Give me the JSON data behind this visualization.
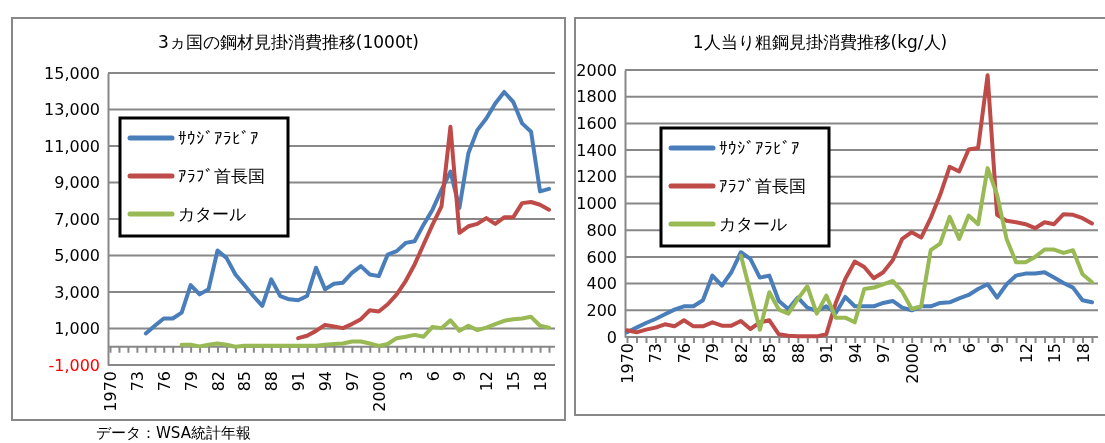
{
  "chart_data": [
    {
      "type": "line",
      "title": "3ヵ国の鋼材見掛消費推移(1000t)",
      "categories": [
        "1970",
        null,
        null,
        "73",
        null,
        null,
        "76",
        null,
        null,
        "79",
        null,
        null,
        "82",
        null,
        null,
        "85",
        null,
        null,
        "88",
        null,
        null,
        "91",
        null,
        null,
        "94",
        null,
        null,
        "97",
        null,
        null,
        "2000",
        null,
        null,
        "3",
        null,
        null,
        "6",
        null,
        null,
        "9",
        null,
        null,
        "12",
        null,
        null,
        "15",
        null,
        null,
        "18",
        null
      ],
      "series": [
        {
          "name": "ｻｳｼﾞｱﾗﾋﾞｱ",
          "color": "#4a7ebb",
          "values": [
            null,
            null,
            null,
            null,
            730,
            1150,
            1550,
            1550,
            1870,
            3380,
            2870,
            3150,
            5270,
            4870,
            3960,
            3380,
            2780,
            2240,
            3690,
            2780,
            2600,
            2550,
            2780,
            4330,
            3150,
            3450,
            3510,
            4050,
            4420,
            3960,
            3870,
            5050,
            5240,
            5690,
            5780,
            6690,
            7510,
            8600,
            9600,
            7600,
            10600,
            11870,
            12510,
            13330,
            13960,
            13420,
            12240,
            11780,
            8510,
            8650
          ]
        },
        {
          "name": "ｱﾗﾌﾞ首長国",
          "color": "#be4b48",
          "values": [
            null,
            null,
            null,
            null,
            null,
            null,
            null,
            null,
            null,
            null,
            null,
            null,
            null,
            null,
            null,
            null,
            null,
            null,
            null,
            null,
            null,
            470,
            600,
            870,
            1200,
            1110,
            1020,
            1240,
            1510,
            2000,
            1930,
            2330,
            2870,
            3600,
            4510,
            5600,
            6690,
            7690,
            12050,
            6240,
            6600,
            6730,
            7050,
            6730,
            7090,
            7090,
            7870,
            7930,
            7780,
            7510
          ]
        },
        {
          "name": "カタール",
          "color": "#98b954",
          "values": [
            null,
            null,
            null,
            null,
            null,
            null,
            null,
            null,
            110,
            110,
            20,
            110,
            180,
            110,
            0,
            50,
            50,
            50,
            50,
            50,
            50,
            50,
            50,
            50,
            110,
            150,
            180,
            290,
            290,
            180,
            50,
            150,
            470,
            550,
            650,
            550,
            1090,
            1020,
            1450,
            870,
            1150,
            910,
            1050,
            1240,
            1420,
            1510,
            1550,
            1640,
            1150,
            1050
          ]
        }
      ],
      "ylim": [
        -1000,
        15000
      ],
      "yticks": [
        {
          "value": -1000,
          "label": "-1,000"
        },
        {
          "value": 1000,
          "label": "1,000"
        },
        {
          "value": 3000,
          "label": "3,000"
        },
        {
          "value": 5000,
          "label": "5,000"
        },
        {
          "value": 7000,
          "label": "7,000"
        },
        {
          "value": 9000,
          "label": "9,000"
        },
        {
          "value": 11000,
          "label": "11,000"
        },
        {
          "value": 13000,
          "label": "13,000"
        },
        {
          "value": 15000,
          "label": "15,000"
        }
      ],
      "grid": "y",
      "legend": "top left",
      "ref_lines": [
        {
          "axis": "y",
          "value": 0,
          "color": "#888888"
        }
      ],
      "annotations": [
        "データ：WSA統計年報"
      ]
    },
    {
      "type": "line",
      "title": "1人当り粗鋼見掛消費推移(kg/人)",
      "categories": [
        "1970",
        null,
        null,
        "73",
        null,
        null,
        "76",
        null,
        null,
        "79",
        null,
        null,
        "82",
        null,
        null,
        "85",
        null,
        null,
        "88",
        null,
        null,
        "91",
        null,
        null,
        "94",
        null,
        null,
        "97",
        null,
        null,
        "2000",
        null,
        null,
        "3",
        null,
        null,
        "6",
        null,
        null,
        "9",
        null,
        null,
        "12",
        null,
        null,
        "15",
        null,
        null,
        "18",
        null
      ],
      "series": [
        {
          "name": "ｻｳｼﾞｱﾗﾋﾞｱ",
          "color": "#4a7ebb",
          "values": [
            35,
            70,
            105,
            135,
            170,
            205,
            230,
            230,
            275,
            460,
            385,
            485,
            635,
            585,
            445,
            460,
            270,
            210,
            295,
            220,
            195,
            230,
            180,
            300,
            230,
            230,
            230,
            255,
            270,
            220,
            200,
            230,
            230,
            255,
            260,
            290,
            315,
            360,
            395,
            295,
            395,
            460,
            475,
            475,
            485,
            445,
            405,
            370,
            275,
            260
          ]
        },
        {
          "name": "ｱﾗﾌﾞ首長国",
          "color": "#be4b48",
          "values": [
            50,
            35,
            55,
            70,
            95,
            80,
            125,
            80,
            80,
            110,
            85,
            85,
            120,
            60,
            110,
            125,
            20,
            10,
            5,
            5,
            5,
            20,
            255,
            435,
            565,
            525,
            440,
            485,
            575,
            735,
            785,
            745,
            890,
            1065,
            1275,
            1240,
            1405,
            1415,
            1960,
            915,
            870,
            860,
            845,
            815,
            860,
            845,
            920,
            915,
            890,
            850
          ]
        },
        {
          "name": "カタール",
          "color": "#98b954",
          "values": [
            null,
            null,
            null,
            null,
            null,
            null,
            null,
            null,
            null,
            null,
            null,
            null,
            610,
            335,
            55,
            335,
            205,
            175,
            285,
            380,
            175,
            310,
            145,
            145,
            110,
            360,
            370,
            395,
            420,
            340,
            210,
            230,
            650,
            700,
            900,
            735,
            910,
            845,
            1265,
            1065,
            735,
            560,
            560,
            600,
            655,
            655,
            630,
            650,
            470,
            410
          ]
        }
      ],
      "ylim": [
        0,
        2000
      ],
      "yticks": [
        0,
        200,
        400,
        600,
        800,
        1000,
        1200,
        1400,
        1600,
        1800,
        2000
      ],
      "grid": "y",
      "legend": "top left"
    }
  ]
}
